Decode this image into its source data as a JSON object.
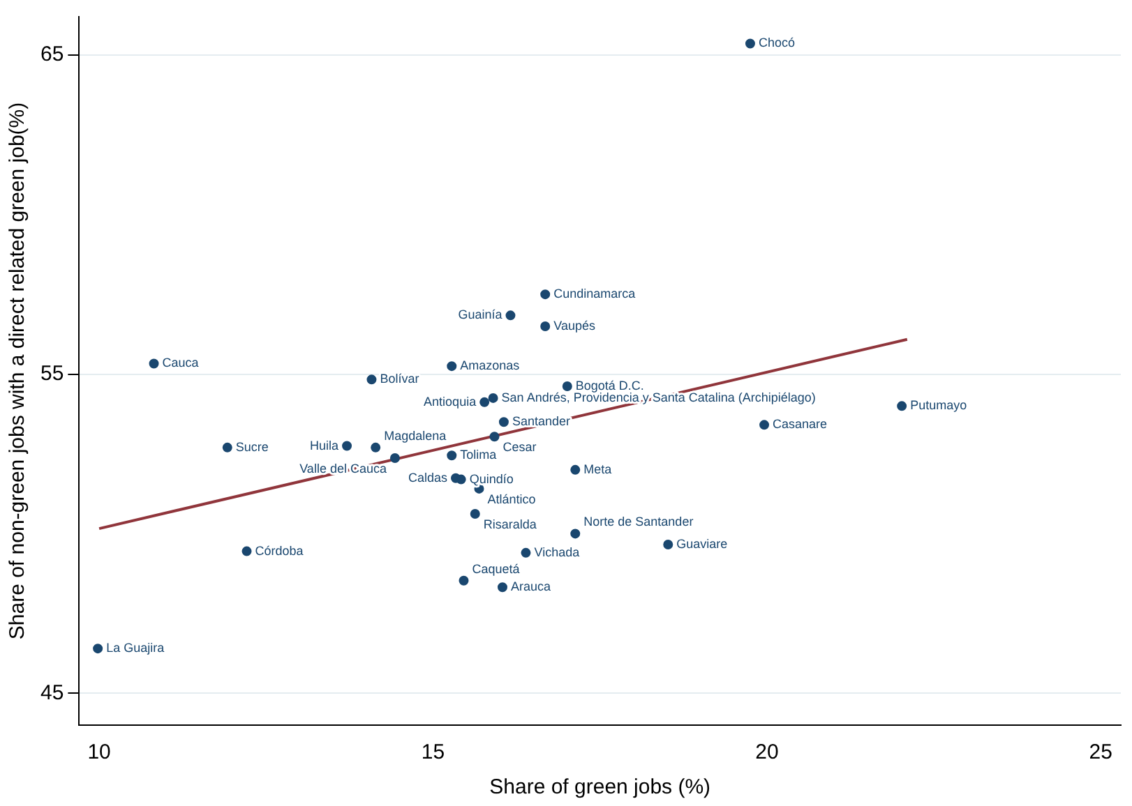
{
  "chart_data": {
    "type": "scatter",
    "xlabel": "Share of green jobs (%)",
    "ylabel": "Share of non-green jobs with a direct related green job(%)",
    "xlim": [
      9.7,
      25.3
    ],
    "xticks": [
      10,
      15,
      20,
      25
    ],
    "ylim": [
      44,
      66.2
    ],
    "yticks": [
      45,
      55,
      65
    ],
    "grid": "y",
    "legend": false,
    "marker": "circle",
    "series": [
      {
        "color": "#1a476f",
        "x": [
          19.75,
          16.68,
          16.16,
          16.68,
          15.28,
          14.08,
          10.82,
          17.01,
          15.9,
          15.77,
          16.06,
          15.92,
          13.71,
          14.14,
          15.28,
          14.43,
          11.92,
          17.13,
          15.34,
          15.42,
          15.69,
          15.63,
          17.13,
          18.52,
          16.39,
          15.46,
          16.04,
          12.21,
          9.98,
          19.96,
          22.02
        ],
        "values": [
          65.36,
          57.5,
          56.84,
          56.5,
          55.25,
          54.83,
          55.33,
          54.62,
          54.25,
          54.12,
          53.5,
          53.04,
          52.75,
          52.7,
          52.45,
          52.37,
          52.7,
          52.0,
          51.74,
          51.7,
          51.41,
          50.62,
          50.0,
          49.66,
          49.4,
          48.53,
          48.32,
          49.45,
          46.4,
          53.41,
          54.0
        ]
      },
      {
        "type": "line",
        "marker": "none",
        "color": "#90353b",
        "x": [
          10,
          22.1
        ],
        "values": [
          50.16,
          56.09
        ]
      }
    ],
    "annotations": [
      {
        "text": "Chocó",
        "x": 19.75,
        "y": 65.36
      },
      {
        "text": "Cundinamarca",
        "x": 16.68,
        "y": 57.5
      },
      {
        "text": "Guainía",
        "x": 16.16,
        "y": 56.84
      },
      {
        "text": "Vaupés",
        "x": 16.68,
        "y": 56.5
      },
      {
        "text": "Amazonas",
        "x": 15.28,
        "y": 55.25
      },
      {
        "text": "Bolívar",
        "x": 14.08,
        "y": 54.83
      },
      {
        "text": "Cauca",
        "x": 10.82,
        "y": 55.33
      },
      {
        "text": "Bogotá D.C.",
        "x": 17.01,
        "y": 54.62
      },
      {
        "text": "San Andrés, Providencia y Santa Catalina (Archipiélago)",
        "x": 15.9,
        "y": 54.25
      },
      {
        "text": "Antioquia",
        "x": 15.77,
        "y": 54.12
      },
      {
        "text": "Santander",
        "x": 16.06,
        "y": 53.5
      },
      {
        "text": "Cesar",
        "x": 15.92,
        "y": 53.04
      },
      {
        "text": "Huila",
        "x": 13.71,
        "y": 52.75
      },
      {
        "text": "Magdalena",
        "x": 14.14,
        "y": 52.7
      },
      {
        "text": "Tolima",
        "x": 15.28,
        "y": 52.45
      },
      {
        "text": "Valle del Cauca",
        "x": 14.43,
        "y": 52.37
      },
      {
        "text": "Sucre",
        "x": 11.92,
        "y": 52.7
      },
      {
        "text": "Meta",
        "x": 17.13,
        "y": 52.0
      },
      {
        "text": "Caldas",
        "x": 15.34,
        "y": 51.74
      },
      {
        "text": "Quindío",
        "x": 15.42,
        "y": 51.7
      },
      {
        "text": "Atlántico",
        "x": 15.69,
        "y": 51.41
      },
      {
        "text": "Risaralda",
        "x": 15.63,
        "y": 50.62
      },
      {
        "text": "Norte de Santander",
        "x": 17.13,
        "y": 50.0
      },
      {
        "text": "Guaviare",
        "x": 18.52,
        "y": 49.66
      },
      {
        "text": "Vichada",
        "x": 16.39,
        "y": 49.4
      },
      {
        "text": "Caquetá",
        "x": 15.46,
        "y": 48.53
      },
      {
        "text": "Arauca",
        "x": 16.04,
        "y": 48.32
      },
      {
        "text": "Córdoba",
        "x": 12.21,
        "y": 49.45
      },
      {
        "text": "La Guajira",
        "x": 9.98,
        "y": 46.4
      },
      {
        "text": "Casanare",
        "x": 19.96,
        "y": 53.41
      },
      {
        "text": "Putumayo",
        "x": 22.02,
        "y": 54.0
      }
    ]
  }
}
